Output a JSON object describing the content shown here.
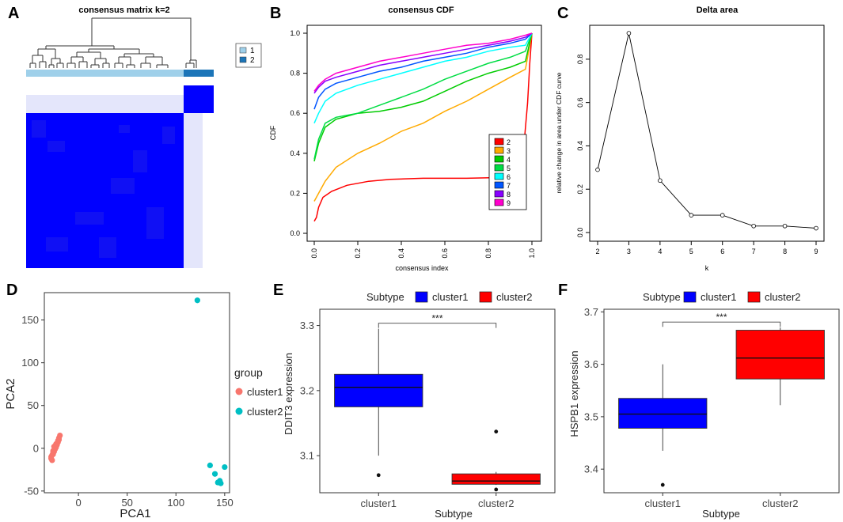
{
  "panel_letters": [
    "A",
    "B",
    "C",
    "D",
    "E",
    "F"
  ],
  "chart_data": [
    {
      "id": "A",
      "type": "heatmap",
      "title": "consensus matrix k=2",
      "legend": [
        "1",
        "2"
      ],
      "colors": {
        "cluster1_bar": "#9fd0ea",
        "cluster2_bar": "#1c75b8",
        "high": "#0000ff",
        "low": "#ffffff",
        "faint": "#e4e6fb"
      }
    },
    {
      "id": "B",
      "type": "line",
      "title": "consensus CDF",
      "xlabel": "consensus index",
      "ylabel": "CDF",
      "xlim": [
        0,
        1
      ],
      "ylim": [
        0,
        1
      ],
      "xticks": [
        "0.0",
        "0.2",
        "0.4",
        "0.6",
        "0.8",
        "1.0"
      ],
      "yticks": [
        "0.0",
        "0.2",
        "0.4",
        "0.6",
        "0.8",
        "1.0"
      ],
      "series": [
        {
          "name": "2",
          "color": "#ff0000",
          "points": [
            [
              0,
              0.06
            ],
            [
              0.01,
              0.08
            ],
            [
              0.02,
              0.13
            ],
            [
              0.04,
              0.18
            ],
            [
              0.08,
              0.21
            ],
            [
              0.15,
              0.24
            ],
            [
              0.25,
              0.26
            ],
            [
              0.35,
              0.27
            ],
            [
              0.5,
              0.275
            ],
            [
              0.7,
              0.275
            ],
            [
              0.9,
              0.28
            ],
            [
              0.94,
              0.3
            ],
            [
              0.96,
              0.4
            ],
            [
              0.98,
              0.65
            ],
            [
              0.99,
              0.85
            ],
            [
              1,
              1
            ]
          ]
        },
        {
          "name": "3",
          "color": "#ffaa00",
          "points": [
            [
              0,
              0.16
            ],
            [
              0.02,
              0.2
            ],
            [
              0.05,
              0.26
            ],
            [
              0.1,
              0.33
            ],
            [
              0.2,
              0.4
            ],
            [
              0.3,
              0.45
            ],
            [
              0.4,
              0.51
            ],
            [
              0.5,
              0.55
            ],
            [
              0.6,
              0.61
            ],
            [
              0.7,
              0.66
            ],
            [
              0.8,
              0.72
            ],
            [
              0.9,
              0.78
            ],
            [
              0.97,
              0.82
            ],
            [
              1,
              1
            ]
          ]
        },
        {
          "name": "4",
          "color": "#00cc00",
          "points": [
            [
              0,
              0.36
            ],
            [
              0.02,
              0.45
            ],
            [
              0.05,
              0.53
            ],
            [
              0.1,
              0.57
            ],
            [
              0.2,
              0.6
            ],
            [
              0.3,
              0.61
            ],
            [
              0.4,
              0.63
            ],
            [
              0.5,
              0.66
            ],
            [
              0.6,
              0.71
            ],
            [
              0.7,
              0.76
            ],
            [
              0.8,
              0.8
            ],
            [
              0.9,
              0.83
            ],
            [
              0.97,
              0.86
            ],
            [
              1,
              1
            ]
          ]
        },
        {
          "name": "5",
          "color": "#00dd44",
          "points": [
            [
              0,
              0.37
            ],
            [
              0.02,
              0.47
            ],
            [
              0.05,
              0.55
            ],
            [
              0.1,
              0.58
            ],
            [
              0.2,
              0.6
            ],
            [
              0.3,
              0.64
            ],
            [
              0.4,
              0.68
            ],
            [
              0.5,
              0.72
            ],
            [
              0.6,
              0.77
            ],
            [
              0.7,
              0.81
            ],
            [
              0.8,
              0.85
            ],
            [
              0.9,
              0.88
            ],
            [
              0.97,
              0.91
            ],
            [
              1,
              1
            ]
          ]
        },
        {
          "name": "6",
          "color": "#00ffff",
          "points": [
            [
              0,
              0.55
            ],
            [
              0.02,
              0.6
            ],
            [
              0.05,
              0.66
            ],
            [
              0.1,
              0.7
            ],
            [
              0.2,
              0.74
            ],
            [
              0.3,
              0.77
            ],
            [
              0.4,
              0.8
            ],
            [
              0.5,
              0.83
            ],
            [
              0.6,
              0.86
            ],
            [
              0.7,
              0.88
            ],
            [
              0.8,
              0.91
            ],
            [
              0.9,
              0.93
            ],
            [
              0.97,
              0.94
            ],
            [
              1,
              1
            ]
          ]
        },
        {
          "name": "7",
          "color": "#0055ff",
          "points": [
            [
              0,
              0.62
            ],
            [
              0.02,
              0.68
            ],
            [
              0.05,
              0.72
            ],
            [
              0.1,
              0.75
            ],
            [
              0.2,
              0.78
            ],
            [
              0.3,
              0.81
            ],
            [
              0.4,
              0.83
            ],
            [
              0.5,
              0.86
            ],
            [
              0.6,
              0.88
            ],
            [
              0.7,
              0.9
            ],
            [
              0.8,
              0.93
            ],
            [
              0.9,
              0.95
            ],
            [
              0.97,
              0.97
            ],
            [
              1,
              1
            ]
          ]
        },
        {
          "name": "8",
          "color": "#8800ff",
          "points": [
            [
              0,
              0.7
            ],
            [
              0.02,
              0.73
            ],
            [
              0.05,
              0.76
            ],
            [
              0.1,
              0.78
            ],
            [
              0.2,
              0.81
            ],
            [
              0.3,
              0.84
            ],
            [
              0.4,
              0.86
            ],
            [
              0.5,
              0.88
            ],
            [
              0.6,
              0.9
            ],
            [
              0.7,
              0.92
            ],
            [
              0.8,
              0.94
            ],
            [
              0.9,
              0.96
            ],
            [
              0.97,
              0.98
            ],
            [
              1,
              1
            ]
          ]
        },
        {
          "name": "9",
          "color": "#ff00cc",
          "points": [
            [
              0,
              0.71
            ],
            [
              0.02,
              0.74
            ],
            [
              0.05,
              0.77
            ],
            [
              0.1,
              0.8
            ],
            [
              0.2,
              0.83
            ],
            [
              0.3,
              0.86
            ],
            [
              0.4,
              0.88
            ],
            [
              0.5,
              0.9
            ],
            [
              0.6,
              0.92
            ],
            [
              0.7,
              0.94
            ],
            [
              0.8,
              0.95
            ],
            [
              0.9,
              0.97
            ],
            [
              0.97,
              0.99
            ],
            [
              1,
              1
            ]
          ]
        }
      ]
    },
    {
      "id": "C",
      "type": "line",
      "title": "Delta area",
      "xlabel": "k",
      "ylabel": "relative change in area under CDF curve",
      "xlim": [
        2,
        9
      ],
      "ylim": [
        0,
        0.92
      ],
      "xticks": [
        "2",
        "3",
        "4",
        "5",
        "6",
        "7",
        "8",
        "9"
      ],
      "yticks": [
        "0.0",
        "0.2",
        "0.4",
        "0.6",
        "0.8"
      ],
      "x": [
        2,
        3,
        4,
        5,
        6,
        7,
        8,
        9
      ],
      "values": [
        0.29,
        0.92,
        0.24,
        0.08,
        0.08,
        0.03,
        0.03,
        0.02
      ]
    },
    {
      "id": "D",
      "type": "scatter",
      "xlabel": "PCA1",
      "ylabel": "PCA2",
      "xlim": [
        -35,
        155
      ],
      "ylim": [
        -52,
        182
      ],
      "xticks": [
        "0",
        "50",
        "100",
        "150"
      ],
      "yticks": [
        "-50",
        "0",
        "50",
        "100",
        "150"
      ],
      "legend_title": "group",
      "series": [
        {
          "name": "cluster1",
          "color": "#f8766d",
          "points": [
            [
              -28,
              -12
            ],
            [
              -27,
              -8
            ],
            [
              -26,
              -5
            ],
            [
              -25,
              -2
            ],
            [
              -24,
              0
            ],
            [
              -23,
              3
            ],
            [
              -22,
              6
            ],
            [
              -21,
              9
            ],
            [
              -20,
              12
            ],
            [
              -19,
              15
            ],
            [
              -27,
              -14
            ],
            [
              -28,
              -10
            ],
            [
              -26,
              -7
            ],
            [
              -25,
              -4
            ],
            [
              -24,
              -1
            ],
            [
              -23,
              1
            ],
            [
              -22,
              4
            ],
            [
              -21,
              7
            ],
            [
              -20,
              10
            ],
            [
              -26,
              -3
            ],
            [
              -25,
              2
            ],
            [
              -23,
              5
            ]
          ]
        },
        {
          "name": "cluster2",
          "color": "#00bfc4",
          "points": [
            [
              122,
              173
            ],
            [
              135,
              -20
            ],
            [
              140,
              -30
            ],
            [
              143,
              -40
            ],
            [
              145,
              -38
            ],
            [
              150,
              -22
            ],
            [
              146,
              -41
            ]
          ]
        }
      ]
    },
    {
      "id": "E",
      "type": "box",
      "legend_title": "Subtype",
      "legend": [
        "cluster1",
        "cluster2"
      ],
      "xlabel": "Subtype",
      "ylabel": "DDIT3 expression",
      "categories": [
        "cluster1",
        "cluster2"
      ],
      "ylim": [
        3.043,
        3.325
      ],
      "yticks": [
        "3.1",
        "3.2",
        "3.3"
      ],
      "significance": "***",
      "boxes": [
        {
          "name": "cluster1",
          "color": "#0000ff",
          "min": 3.1,
          "q1": 3.175,
          "median": 3.205,
          "q3": 3.225,
          "max": 3.295,
          "outliers": [
            3.07
          ]
        },
        {
          "name": "cluster2",
          "color": "#ff0000",
          "min": 3.055,
          "q1": 3.056,
          "median": 3.061,
          "q3": 3.072,
          "max": 3.075,
          "outliers": [
            3.137,
            3.048
          ]
        }
      ]
    },
    {
      "id": "F",
      "type": "box",
      "legend_title": "Subtype",
      "legend": [
        "cluster1",
        "cluster2"
      ],
      "xlabel": "Subtype",
      "ylabel": "HSPB1 expression",
      "categories": [
        "cluster1",
        "cluster2"
      ],
      "ylim": [
        3.355,
        3.705
      ],
      "yticks": [
        "3.4",
        "3.5",
        "3.6",
        "3.7"
      ],
      "significance": "***",
      "boxes": [
        {
          "name": "cluster1",
          "color": "#0000ff",
          "min": 3.435,
          "q1": 3.478,
          "median": 3.505,
          "q3": 3.535,
          "max": 3.6,
          "outliers": [
            3.37
          ]
        },
        {
          "name": "cluster2",
          "color": "#ff0000",
          "min": 3.522,
          "q1": 3.572,
          "median": 3.612,
          "q3": 3.665,
          "max": 3.67,
          "outliers": []
        }
      ]
    }
  ]
}
